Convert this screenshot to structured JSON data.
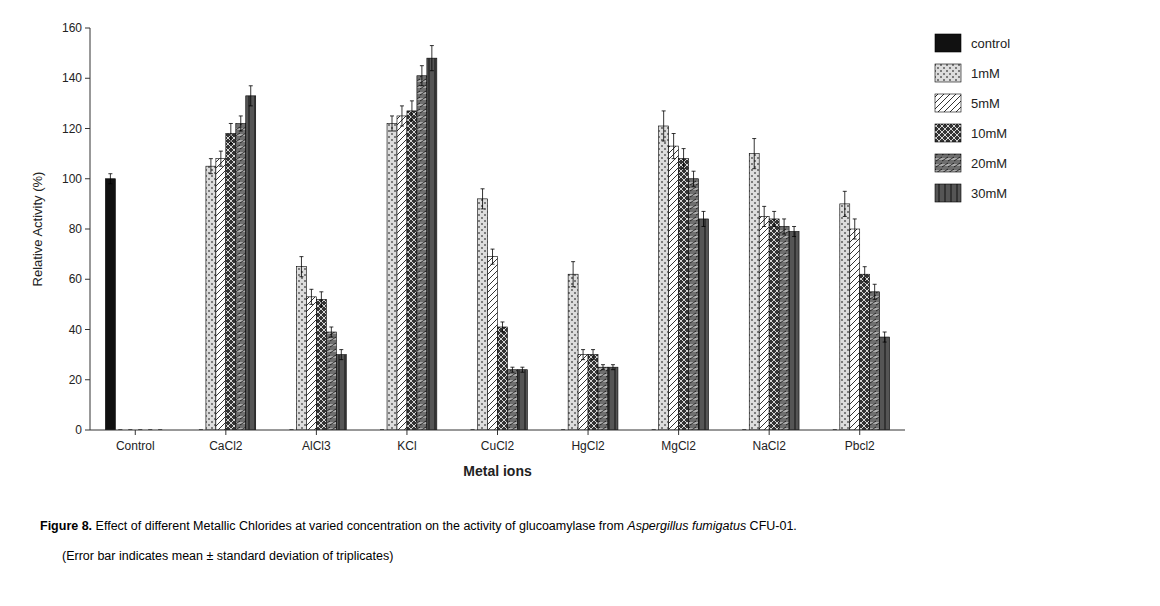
{
  "chart_data": {
    "type": "bar",
    "xlabel": "Metal ions",
    "ylabel": "Relative Activity (%)",
    "categories": [
      "Control",
      "CaCl2",
      "AlCl3",
      "KCl",
      "CuCl2",
      "HgCl2",
      "MgCl2",
      "NaCl2",
      "Pbcl2"
    ],
    "series": [
      {
        "name": "control",
        "color": "#111111",
        "values": [
          100,
          0,
          0,
          0,
          0,
          0,
          0,
          0,
          0
        ],
        "errors": [
          2,
          0,
          0,
          0,
          0,
          0,
          0,
          0,
          0
        ]
      },
      {
        "name": "1mM",
        "color": "#dddddd",
        "values": [
          0,
          105,
          65,
          122,
          92,
          62,
          121,
          110,
          90
        ],
        "errors": [
          0,
          3,
          4,
          3,
          4,
          5,
          6,
          6,
          5
        ]
      },
      {
        "name": "5mM",
        "color": "#ffffff",
        "values": [
          0,
          108,
          53,
          125,
          69,
          30,
          113,
          85,
          80
        ],
        "errors": [
          0,
          3,
          3,
          4,
          3,
          2,
          5,
          4,
          4
        ]
      },
      {
        "name": "10mM",
        "color": "#333333",
        "values": [
          0,
          118,
          52,
          127,
          41,
          30,
          108,
          84,
          62
        ],
        "errors": [
          0,
          4,
          3,
          4,
          2,
          2,
          4,
          3,
          3
        ]
      },
      {
        "name": "20mM",
        "color": "#aaaaaa",
        "values": [
          0,
          122,
          39,
          141,
          24,
          25,
          100,
          81,
          55
        ],
        "errors": [
          0,
          3,
          2,
          4,
          1,
          1,
          3,
          3,
          3
        ]
      },
      {
        "name": "30mM",
        "color": "#555555",
        "values": [
          0,
          133,
          30,
          148,
          24,
          25,
          84,
          79,
          37
        ],
        "errors": [
          0,
          4,
          2,
          5,
          1,
          1,
          3,
          2,
          2
        ]
      }
    ],
    "ylim": [
      0,
      160
    ],
    "yticks": [
      0,
      20,
      40,
      60,
      80,
      100,
      120,
      140,
      160
    ],
    "grid": false,
    "legend": "right",
    "annotations": [
      "Figure 8.",
      "Effect of different Metallic Chlorides at varied concentration on the activity of glucoamylase from ",
      "Aspergillus fumigatus",
      " CFU-01.",
      "(Error bar indicates mean ± standard deviation of triplicates)"
    ]
  }
}
